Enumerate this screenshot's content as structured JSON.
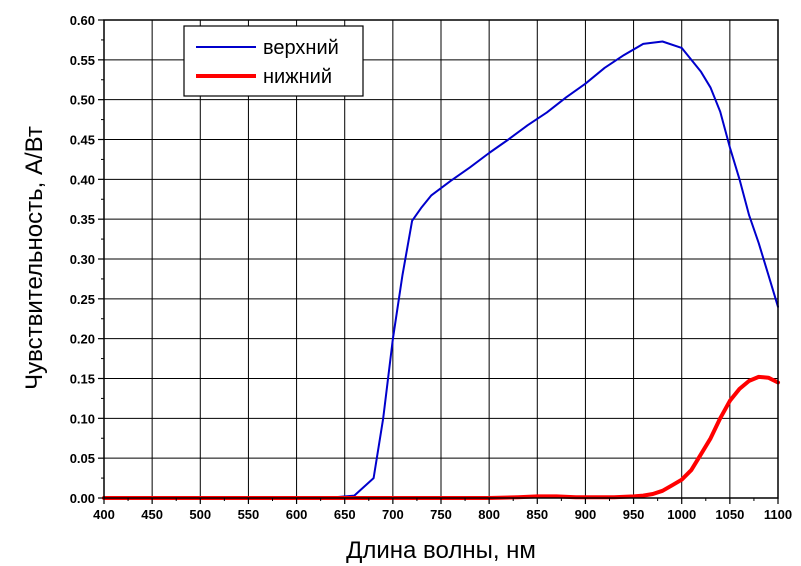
{
  "chart_data": {
    "type": "line",
    "xlabel": "Длина волны, нм",
    "ylabel": "Чувствительность, А/Вт",
    "xlim": [
      400,
      1100
    ],
    "ylim": [
      0,
      0.6
    ],
    "x_ticks": [
      "400",
      "450",
      "500",
      "550",
      "600",
      "650",
      "700",
      "750",
      "800",
      "850",
      "900",
      "950",
      "1000",
      "1050",
      "1100"
    ],
    "y_ticks": [
      "0.00",
      "0.05",
      "0.10",
      "0.15",
      "0.20",
      "0.25",
      "0.30",
      "0.35",
      "0.40",
      "0.45",
      "0.50",
      "0.55",
      "0.60"
    ],
    "grid": true,
    "legend_position": "top-left",
    "series": [
      {
        "name": "верхний",
        "color": "#0000cc",
        "points": [
          [
            400,
            0
          ],
          [
            600,
            0
          ],
          [
            640,
            0.001
          ],
          [
            660,
            0.003
          ],
          [
            680,
            0.025
          ],
          [
            690,
            0.1
          ],
          [
            700,
            0.2
          ],
          [
            710,
            0.28
          ],
          [
            720,
            0.348
          ],
          [
            730,
            0.365
          ],
          [
            740,
            0.38
          ],
          [
            760,
            0.398
          ],
          [
            780,
            0.415
          ],
          [
            800,
            0.433
          ],
          [
            820,
            0.45
          ],
          [
            840,
            0.468
          ],
          [
            860,
            0.484
          ],
          [
            880,
            0.503
          ],
          [
            900,
            0.52
          ],
          [
            920,
            0.54
          ],
          [
            940,
            0.556
          ],
          [
            960,
            0.57
          ],
          [
            980,
            0.573
          ],
          [
            1000,
            0.565
          ],
          [
            1020,
            0.535
          ],
          [
            1030,
            0.515
          ],
          [
            1040,
            0.485
          ],
          [
            1050,
            0.44
          ],
          [
            1060,
            0.4
          ],
          [
            1070,
            0.355
          ],
          [
            1080,
            0.32
          ],
          [
            1090,
            0.28
          ],
          [
            1100,
            0.24
          ]
        ]
      },
      {
        "name": "нижний",
        "color": "#ff0000",
        "points": [
          [
            400,
            0
          ],
          [
            800,
            0
          ],
          [
            830,
            0.001
          ],
          [
            850,
            0.002
          ],
          [
            870,
            0.002
          ],
          [
            890,
            0.001
          ],
          [
            910,
            0.001
          ],
          [
            930,
            0.001
          ],
          [
            950,
            0.002
          ],
          [
            960,
            0.003
          ],
          [
            970,
            0.005
          ],
          [
            980,
            0.009
          ],
          [
            990,
            0.016
          ],
          [
            1000,
            0.023
          ],
          [
            1010,
            0.035
          ],
          [
            1020,
            0.055
          ],
          [
            1030,
            0.075
          ],
          [
            1040,
            0.1
          ],
          [
            1050,
            0.122
          ],
          [
            1060,
            0.137
          ],
          [
            1070,
            0.147
          ],
          [
            1080,
            0.152
          ],
          [
            1090,
            0.151
          ],
          [
            1100,
            0.145
          ]
        ]
      }
    ]
  }
}
